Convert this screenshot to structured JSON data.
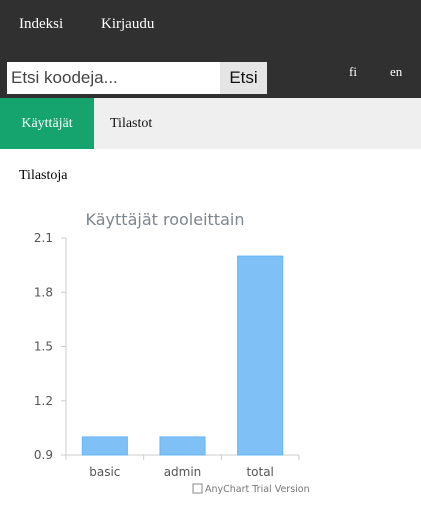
{
  "nav": {
    "home": "Indeksi",
    "login": "Kirjaudu"
  },
  "search": {
    "placeholder": "Etsi koodeja...",
    "value": "",
    "button": "Etsi"
  },
  "languages": {
    "fi": "fi",
    "en": "en"
  },
  "tabs": [
    {
      "label": "Käyttäjät",
      "active": true
    },
    {
      "label": "Tilastot",
      "active": false
    }
  ],
  "page": {
    "heading": "Tilastoja"
  },
  "colors": {
    "topbar": "#303030",
    "active_tab": "#15a36e",
    "bar_fill": "#7fc0f6",
    "bar_stroke": "#64b5f6"
  },
  "chart_data": {
    "type": "bar",
    "title": "Käyttäjät rooleittain",
    "categories": [
      "basic",
      "admin",
      "total"
    ],
    "values": [
      1,
      1,
      2
    ],
    "ylim": [
      0.9,
      2.1
    ],
    "yticks": [
      "0.9",
      "1.2",
      "1.5",
      "1.8",
      "2.1"
    ],
    "grid": false,
    "credits": "AnyChart Trial Version"
  }
}
